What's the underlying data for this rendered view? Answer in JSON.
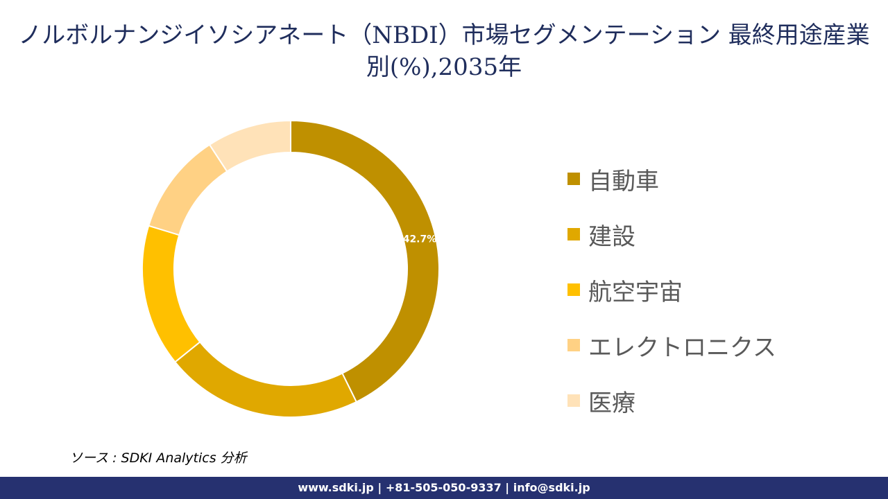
{
  "title": "ノルボルナンジイソシアネート（NBDI）市場セグメンテーション 最終用途産業別(%),2035年",
  "chart_data": {
    "type": "pie",
    "donut": true,
    "title": "ノルボルナンジイソシアネート（NBDI）市場セグメンテーション 最終用途産業別(%),2035年",
    "categories": [
      "自動車",
      "建設",
      "航空宇宙",
      "エレクトロニクス",
      "医療"
    ],
    "values": [
      42.7,
      21.5,
      15.5,
      11.1,
      9.2
    ],
    "data_labels": [
      "42.7%",
      "",
      "",
      "",
      ""
    ],
    "colors": [
      "#bf9000",
      "#e0a800",
      "#ffc000",
      "#ffd184",
      "#ffe2b8"
    ],
    "legend_position": "right"
  },
  "source": "ソース : SDKI Analytics 分析",
  "footer": "www.sdki.jp | +81-505-050-9337 | info@sdki.jp"
}
